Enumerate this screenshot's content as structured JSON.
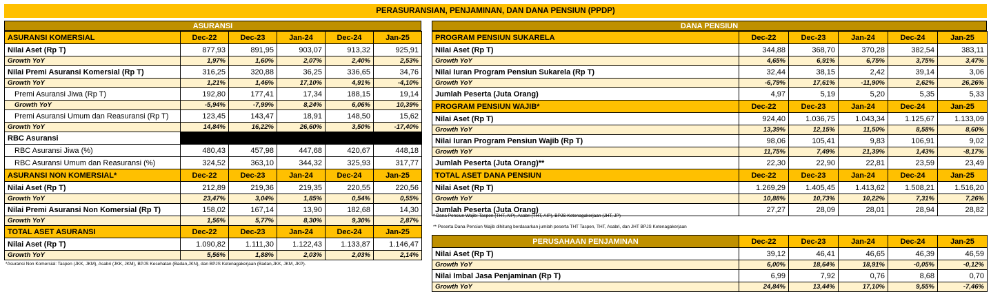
{
  "title": "PERASURANSIAN, PENJAMINAN, DAN DANA PENSIUN (PPDP)",
  "left": {
    "title": "ASURANSI",
    "rows": [
      {
        "k": "sec",
        "label": "ASURANSI KOMERSIAL",
        "v": [
          "Dec-22",
          "Dec-23",
          "Jan-24",
          "Dec-24",
          "Jan-25"
        ]
      },
      {
        "k": "bold",
        "label": "Nilai Aset (Rp T)",
        "v": [
          "877,93",
          "891,95",
          "903,07",
          "913,32",
          "925,91"
        ]
      },
      {
        "k": "gy",
        "label": "Growth YoY",
        "v": [
          "1,97%",
          "1,60%",
          "2,07%",
          "2,40%",
          "2,53%"
        ]
      },
      {
        "k": "bold",
        "label": "Nilai Premi Asuransi Komersial (Rp T)",
        "v": [
          "316,25",
          "320,88",
          "36,25",
          "336,65",
          "34,76"
        ]
      },
      {
        "k": "gy",
        "label": "Growth YoY",
        "v": [
          "1,21%",
          "1,46%",
          "17,10%",
          "4,91%",
          "-4,10%"
        ]
      },
      {
        "k": "sub",
        "label": "Premi Asuransi Jiwa (Rp T)",
        "v": [
          "192,80",
          "177,41",
          "17,34",
          "188,15",
          "19,14"
        ]
      },
      {
        "k": "gysub",
        "label": "Growth YoY",
        "v": [
          "-5,94%",
          "-7,99%",
          "8,24%",
          "6,06%",
          "10,39%"
        ]
      },
      {
        "k": "sub",
        "label": "Premi Asuransi Umum dan Reasuransi (Rp T)",
        "v": [
          "123,45",
          "143,47",
          "18,91",
          "148,50",
          "15,62"
        ]
      },
      {
        "k": "gy",
        "label": "Growth YoY",
        "v": [
          "14,84%",
          "16,22%",
          "26,60%",
          "3,50%",
          "-17,40%"
        ]
      },
      {
        "k": "rbc",
        "label": "RBC Asuransi",
        "v": []
      },
      {
        "k": "sub",
        "label": "RBC Asuransi Jiwa (%)",
        "v": [
          "480,43",
          "457,98",
          "447,68",
          "420,67",
          "448,18"
        ]
      },
      {
        "k": "sub",
        "label": "RBC Asuransi Umum dan Reasuransi (%)",
        "v": [
          "324,52",
          "363,10",
          "344,32",
          "325,93",
          "317,77"
        ]
      },
      {
        "k": "sec",
        "label": "ASURANSI NON KOMERSIAL*",
        "v": [
          "Dec-22",
          "Dec-23",
          "Jan-24",
          "Dec-24",
          "Jan-25"
        ]
      },
      {
        "k": "bold",
        "label": "Nilai Aset (Rp T)",
        "v": [
          "212,89",
          "219,36",
          "219,35",
          "220,55",
          "220,56"
        ]
      },
      {
        "k": "gy",
        "label": "Growth YoY",
        "v": [
          "23,47%",
          "3,04%",
          "1,85%",
          "0,54%",
          "0,55%"
        ]
      },
      {
        "k": "bold",
        "label": "Nilai Premi Asuransi Non Komersial (Rp T)",
        "v": [
          "158,02",
          "167,14",
          "13,90",
          "182,68",
          "14,30"
        ]
      },
      {
        "k": "gy",
        "label": "Growth YoY",
        "v": [
          "1,56%",
          "5,77%",
          "8,30%",
          "9,30%",
          "2,87%"
        ]
      },
      {
        "k": "sec",
        "label": "TOTAL ASET ASURANSI",
        "v": [
          "Dec-22",
          "Dec-23",
          "Jan-24",
          "Dec-24",
          "Jan-25"
        ]
      },
      {
        "k": "bold",
        "label": "Nilai Aset (Rp T)",
        "v": [
          "1.090,82",
          "1.111,30",
          "1.122,43",
          "1.133,87",
          "1.146,47"
        ]
      },
      {
        "k": "gy",
        "label": "Growth YoY",
        "v": [
          "5,56%",
          "1,88%",
          "2,03%",
          "2,03%",
          "2,14%"
        ]
      }
    ],
    "note": "*Asuransi Non Komersial: Taspen (JKK, JKM), Asabri (JKK, JKM), BPJS Kesehatan (Badan,JKN), dan BPJS Ketenagakerjaan (Badan,JKK, JKM, JKP)."
  },
  "right": {
    "title": "DANA PENSIUN",
    "rows": [
      {
        "k": "sec",
        "label": "PROGRAM PENSIUN SUKARELA",
        "v": [
          "Dec-22",
          "Dec-23",
          "Jan-24",
          "Dec-24",
          "Jan-25"
        ]
      },
      {
        "k": "bold",
        "label": "Nilai Aset (Rp T)",
        "v": [
          "344,88",
          "368,70",
          "370,28",
          "382,54",
          "383,11"
        ]
      },
      {
        "k": "gy",
        "label": "Growth YoY",
        "v": [
          "4,65%",
          "6,91%",
          "6,75%",
          "3,75%",
          "3,47%"
        ]
      },
      {
        "k": "bold",
        "label": "Nilai Iuran Program Pensiun Sukarela (Rp T)",
        "v": [
          "32,44",
          "38,15",
          "2,42",
          "39,14",
          "3,06"
        ]
      },
      {
        "k": "gy",
        "label": "Growth YoY",
        "v": [
          "-6,79%",
          "17,61%",
          "-11,90%",
          "2,62%",
          "26,26%"
        ]
      },
      {
        "k": "bold",
        "label": "Jumlah Peserta (Juta Orang)",
        "v": [
          "4,97",
          "5,19",
          "5,20",
          "5,35",
          "5,33"
        ]
      },
      {
        "k": "sec",
        "label": "PROGRAM PENSIUN WAJIB*",
        "v": [
          "Dec-22",
          "Dec-23",
          "Jan-24",
          "Dec-24",
          "Jan-25"
        ]
      },
      {
        "k": "bold",
        "label": "Nilai Aset (Rp T)",
        "v": [
          "924,40",
          "1.036,75",
          "1.043,34",
          "1.125,67",
          "1.133,09"
        ]
      },
      {
        "k": "gy",
        "label": "Growth YoY",
        "v": [
          "13,39%",
          "12,15%",
          "11,50%",
          "8,58%",
          "8,60%"
        ]
      },
      {
        "k": "bold",
        "label": "Nilai Iuran Program Pensiun Wajib (Rp T)",
        "v": [
          "98,06",
          "105,41",
          "9,83",
          "106,91",
          "9,02"
        ]
      },
      {
        "k": "gy",
        "label": "Growth YoY",
        "v": [
          "11,75%",
          "7,49%",
          "21,39%",
          "1,43%",
          "-8,17%"
        ]
      },
      {
        "k": "bold",
        "label": "Jumlah Peserta (Juta Orang)**",
        "v": [
          "22,30",
          "22,90",
          "22,81",
          "23,59",
          "23,49"
        ]
      },
      {
        "k": "sec",
        "label": "TOTAL ASET DANA PENSIUN",
        "v": [
          "Dec-22",
          "Dec-23",
          "Jan-24",
          "Dec-24",
          "Jan-25"
        ]
      },
      {
        "k": "bold",
        "label": "Nilai Aset (Rp T)",
        "v": [
          "1.269,29",
          "1.405,45",
          "1.413,62",
          "1.508,21",
          "1.516,20"
        ]
      },
      {
        "k": "gy",
        "label": "Growth YoY",
        "v": [
          "10,88%",
          "10,73%",
          "10,22%",
          "7,31%",
          "7,26%"
        ]
      },
      {
        "k": "bold",
        "label": "Jumlah Peserta (Juta Orang)",
        "v": [
          "27,27",
          "28,09",
          "28,01",
          "28,94",
          "28,82"
        ]
      }
    ],
    "note1": "* Dana Pensiun Wajib: Taspen (THT, AIP), Asabri (THT, AIP), BPJS Ketenagakerjaan (JHT, JP)",
    "note2": "** Peserta Dana Pensiun Wajib dihitung berdasarkan jumlah peserta THT Taspen, THT, Asabri, dan JHT BPJS Ketenagakerjaan"
  },
  "guarantee": {
    "title": "PERUSAHAAN PENJAMINAN",
    "headers": [
      "Dec-22",
      "Dec-23",
      "Jan-24",
      "Dec-24",
      "Jan-25"
    ],
    "rows": [
      {
        "k": "bold",
        "label": "Nilai Aset (Rp T)",
        "v": [
          "39,12",
          "46,41",
          "46,65",
          "46,39",
          "46,59"
        ]
      },
      {
        "k": "gy",
        "label": "Growth YoY",
        "v": [
          "6,00%",
          "18,64%",
          "18,91%",
          "-0,05%",
          "-0,12%"
        ]
      },
      {
        "k": "bold",
        "label": "Nilai Imbal Jasa Penjaminan (Rp T)",
        "v": [
          "6,99",
          "7,92",
          "0,76",
          "8,68",
          "0,70"
        ]
      },
      {
        "k": "gy",
        "label": "Growth YoY",
        "v": [
          "24,84%",
          "13,44%",
          "17,10%",
          "9,55%",
          "-7,46%"
        ]
      }
    ]
  }
}
